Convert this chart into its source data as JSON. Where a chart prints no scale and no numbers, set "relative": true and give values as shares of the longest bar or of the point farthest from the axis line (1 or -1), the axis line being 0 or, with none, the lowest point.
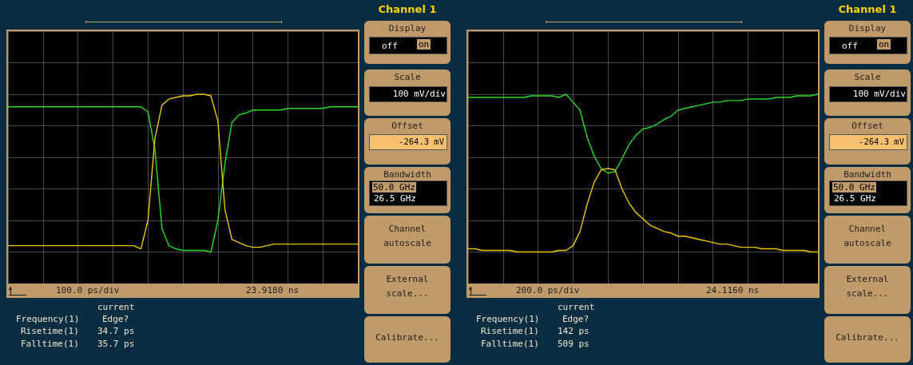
{
  "chart_data": [
    {
      "type": "line",
      "relative": true,
      "grid": true,
      "line_style": "solid",
      "categories": [
        null,
        null,
        null,
        null,
        null,
        null,
        null,
        null,
        null,
        null,
        null,
        null,
        null,
        null,
        null,
        null,
        null,
        null,
        null,
        null,
        null,
        null,
        null,
        null,
        null,
        null,
        null,
        null,
        null,
        null,
        null,
        null,
        null,
        null,
        null,
        null,
        null,
        null,
        null,
        null,
        null,
        null,
        null,
        null,
        null,
        null,
        null,
        null,
        null,
        null,
        null
      ],
      "series": [
        {
          "color": "#22dd22",
          "values": [
            0.92,
            0.92,
            0.92,
            0.92,
            0.92,
            0.92,
            0.92,
            0.92,
            0.92,
            0.92,
            0.92,
            0.92,
            0.92,
            0.92,
            0.92,
            0.92,
            0.92,
            0.92,
            0.92,
            0.92,
            0.89,
            0.65,
            0.15,
            0.04,
            0.02,
            0.01,
            0.01,
            0.01,
            0.01,
            0,
            0.2,
            0.56,
            0.82,
            0.87,
            0.88,
            0.9,
            0.9,
            0.9,
            0.9,
            0.9,
            0.91,
            0.91,
            0.91,
            0.91,
            0.91,
            0.91,
            0.92,
            0.92,
            0.92,
            0.92,
            0.92
          ]
        },
        {
          "color": "#e8c800",
          "values": [
            0.04,
            0.04,
            0.04,
            0.04,
            0.04,
            0.04,
            0.04,
            0.04,
            0.04,
            0.04,
            0.04,
            0.04,
            0.04,
            0.04,
            0.04,
            0.04,
            0.04,
            0.04,
            0.04,
            0.02,
            0.2,
            0.72,
            0.93,
            0.97,
            0.98,
            0.99,
            0.99,
            1,
            1,
            0.99,
            0.83,
            0.27,
            0.08,
            0.06,
            0.04,
            0.03,
            0.03,
            0.04,
            0.05,
            0.05,
            0.05,
            0.05,
            0.05,
            0.05,
            0.05,
            0.05,
            0.05,
            0.05,
            0.05,
            0.05,
            0.05
          ]
        }
      ],
      "annotations": [
        "Channel 1",
        "Display",
        "off",
        "on",
        "Scale",
        "100 mV/div",
        "Offset",
        "-264.3 mV",
        "Bandwidth",
        "50.0 GHz",
        "26.5 GHz",
        "Channel autoscale",
        "External scale...",
        "Calibrate...",
        "100.0 ps/div",
        "23.9180 ns",
        "current",
        "Frequency(1)",
        "Edge?",
        "Risetime(1)",
        "34.7 ps",
        "Falltime(1)",
        "35.7 ps"
      ]
    },
    {
      "type": "line",
      "relative": true,
      "grid": true,
      "line_style": "solid",
      "categories": [
        null,
        null,
        null,
        null,
        null,
        null,
        null,
        null,
        null,
        null,
        null,
        null,
        null,
        null,
        null,
        null,
        null,
        null,
        null,
        null,
        null,
        null,
        null,
        null,
        null,
        null,
        null,
        null,
        null,
        null,
        null,
        null,
        null,
        null,
        null,
        null,
        null,
        null,
        null,
        null,
        null,
        null,
        null,
        null,
        null,
        null,
        null,
        null,
        null,
        null,
        null
      ],
      "series": [
        {
          "color": "#22dd22",
          "values": [
            0.98,
            0.98,
            0.98,
            0.98,
            0.98,
            0.98,
            0.98,
            0.98,
            0.98,
            0.99,
            0.99,
            0.99,
            0.99,
            0.98,
            1,
            0.95,
            0.9,
            0.73,
            0.61,
            0.53,
            0.5,
            0.51,
            0.59,
            0.68,
            0.74,
            0.78,
            0.79,
            0.81,
            0.84,
            0.86,
            0.9,
            0.91,
            0.92,
            0.93,
            0.94,
            0.95,
            0.95,
            0.96,
            0.96,
            0.96,
            0.97,
            0.97,
            0.97,
            0.97,
            0.98,
            0.98,
            0.98,
            0.99,
            0.99,
            0.99,
            1
          ]
        },
        {
          "color": "#e8c800",
          "values": [
            0.02,
            0.02,
            0.01,
            0.01,
            0.01,
            0.01,
            0.01,
            0,
            0,
            0,
            0,
            0,
            0,
            0.01,
            0.01,
            0.04,
            0.13,
            0.3,
            0.44,
            0.52,
            0.53,
            0.52,
            0.4,
            0.31,
            0.25,
            0.21,
            0.17,
            0.15,
            0.13,
            0.12,
            0.1,
            0.1,
            0.09,
            0.08,
            0.07,
            0.06,
            0.05,
            0.05,
            0.04,
            0.03,
            0.03,
            0.03,
            0.02,
            0.02,
            0.02,
            0.01,
            0.01,
            0.01,
            0.01,
            0,
            0
          ]
        }
      ],
      "annotations": [
        "Channel 1",
        "Display",
        "off",
        "on",
        "Scale",
        "100 mV/div",
        "Offset",
        "-264.3 mV",
        "Bandwidth",
        "50.0 GHz",
        "26.5 GHz",
        "Channel autoscale",
        "External scale...",
        "Calibrate...",
        "200.0 ps/div",
        "24.1160 ns",
        "current",
        "Frequency(1)",
        "Edge?",
        "Risetime(1)",
        "142 ps",
        "Falltime(1)",
        "509 ps"
      ]
    }
  ]
}
